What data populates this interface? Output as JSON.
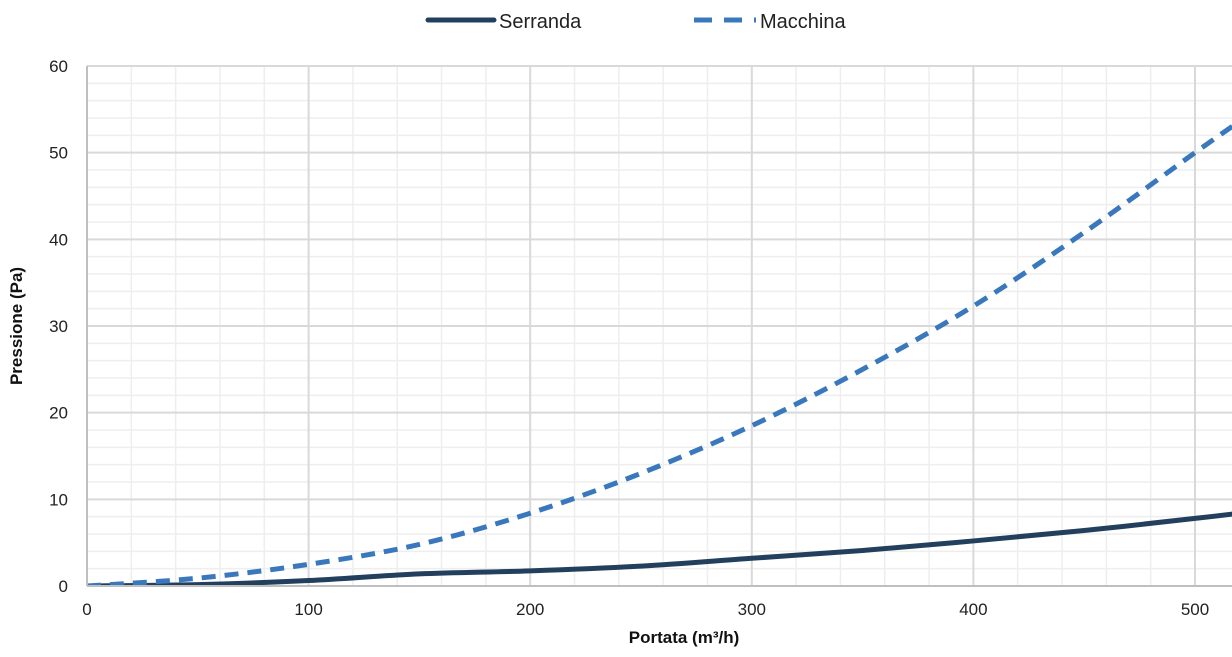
{
  "chart_data": {
    "type": "line",
    "title": "",
    "xlabel": "Portata (m³/h)",
    "ylabel": "Pressione (Pa)",
    "xlim": [
      0,
      520
    ],
    "ylim": [
      0,
      60
    ],
    "x_ticks": [
      0,
      100,
      200,
      300,
      400,
      500
    ],
    "y_ticks": [
      0,
      10,
      20,
      30,
      40,
      50,
      60
    ],
    "grid": true,
    "minor_grid": true,
    "legend_position": "top-center",
    "series": [
      {
        "name": "Serranda",
        "color": "#22405e",
        "style": "solid",
        "x": [
          0,
          50,
          100,
          150,
          200,
          250,
          300,
          350,
          400,
          450,
          500,
          520
        ],
        "y": [
          0,
          0.16,
          0.63,
          1.4,
          1.75,
          2.3,
          3.2,
          4.1,
          5.2,
          6.4,
          7.8,
          8.4
        ]
      },
      {
        "name": "Macchina",
        "color": "#3a78bd",
        "style": "dashed",
        "x": [
          0,
          50,
          100,
          150,
          200,
          250,
          300,
          350,
          400,
          450,
          500,
          520
        ],
        "y": [
          0,
          0.9,
          2.5,
          4.8,
          8.4,
          13.0,
          18.5,
          25.0,
          32.3,
          40.8,
          50.0,
          53.6
        ]
      }
    ]
  }
}
